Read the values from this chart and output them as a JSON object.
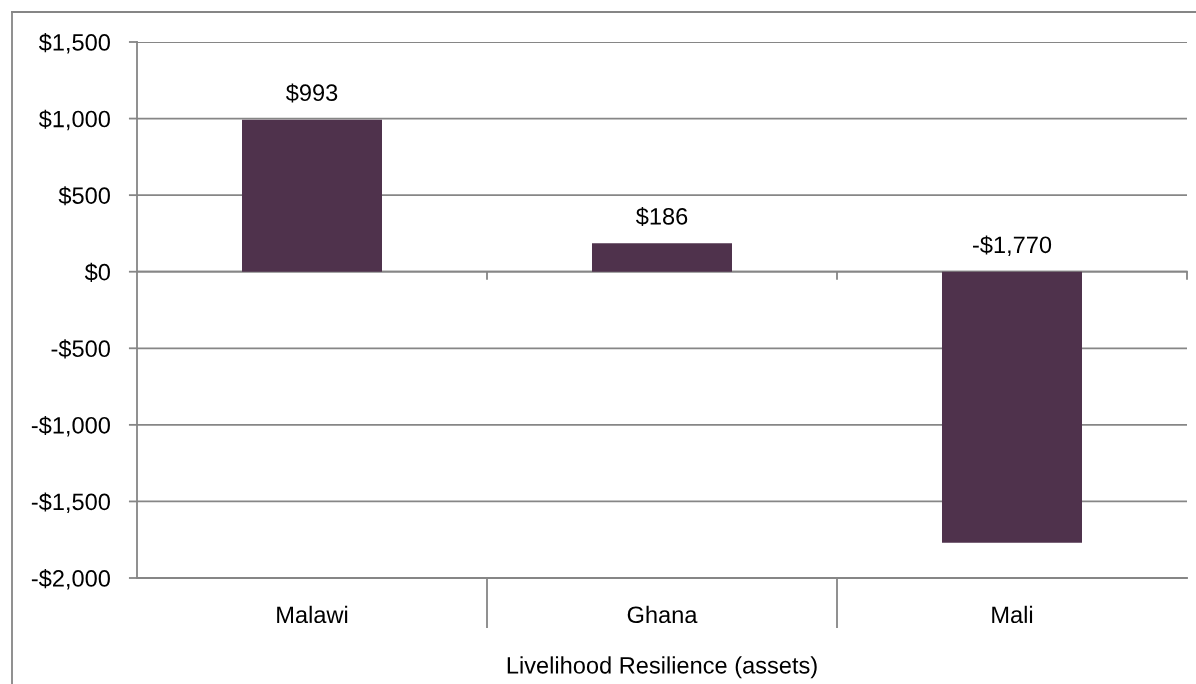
{
  "chart_data": {
    "type": "bar",
    "xlabel": "Livelihood Resilience (assets)",
    "categories": [
      "Malawi",
      "Ghana",
      "Mali"
    ],
    "values": [
      993,
      186,
      -1770
    ],
    "color": "#4f324c",
    "value_labels": [
      "$993",
      "$186",
      "-$1,770"
    ],
    "ylim": [
      -2000,
      1500
    ],
    "yticks": [
      {
        "value": 1500,
        "label": "$1,500"
      },
      {
        "value": 1000,
        "label": "$1,000"
      },
      {
        "value": 500,
        "label": "$500"
      },
      {
        "value": 0,
        "label": "$0"
      },
      {
        "value": -500,
        "label": "-$500"
      },
      {
        "value": -1000,
        "label": "-$1,000"
      },
      {
        "value": -1500,
        "label": "-$1,500"
      },
      {
        "value": -2000,
        "label": "-$2,000"
      }
    ],
    "grid": "y"
  }
}
